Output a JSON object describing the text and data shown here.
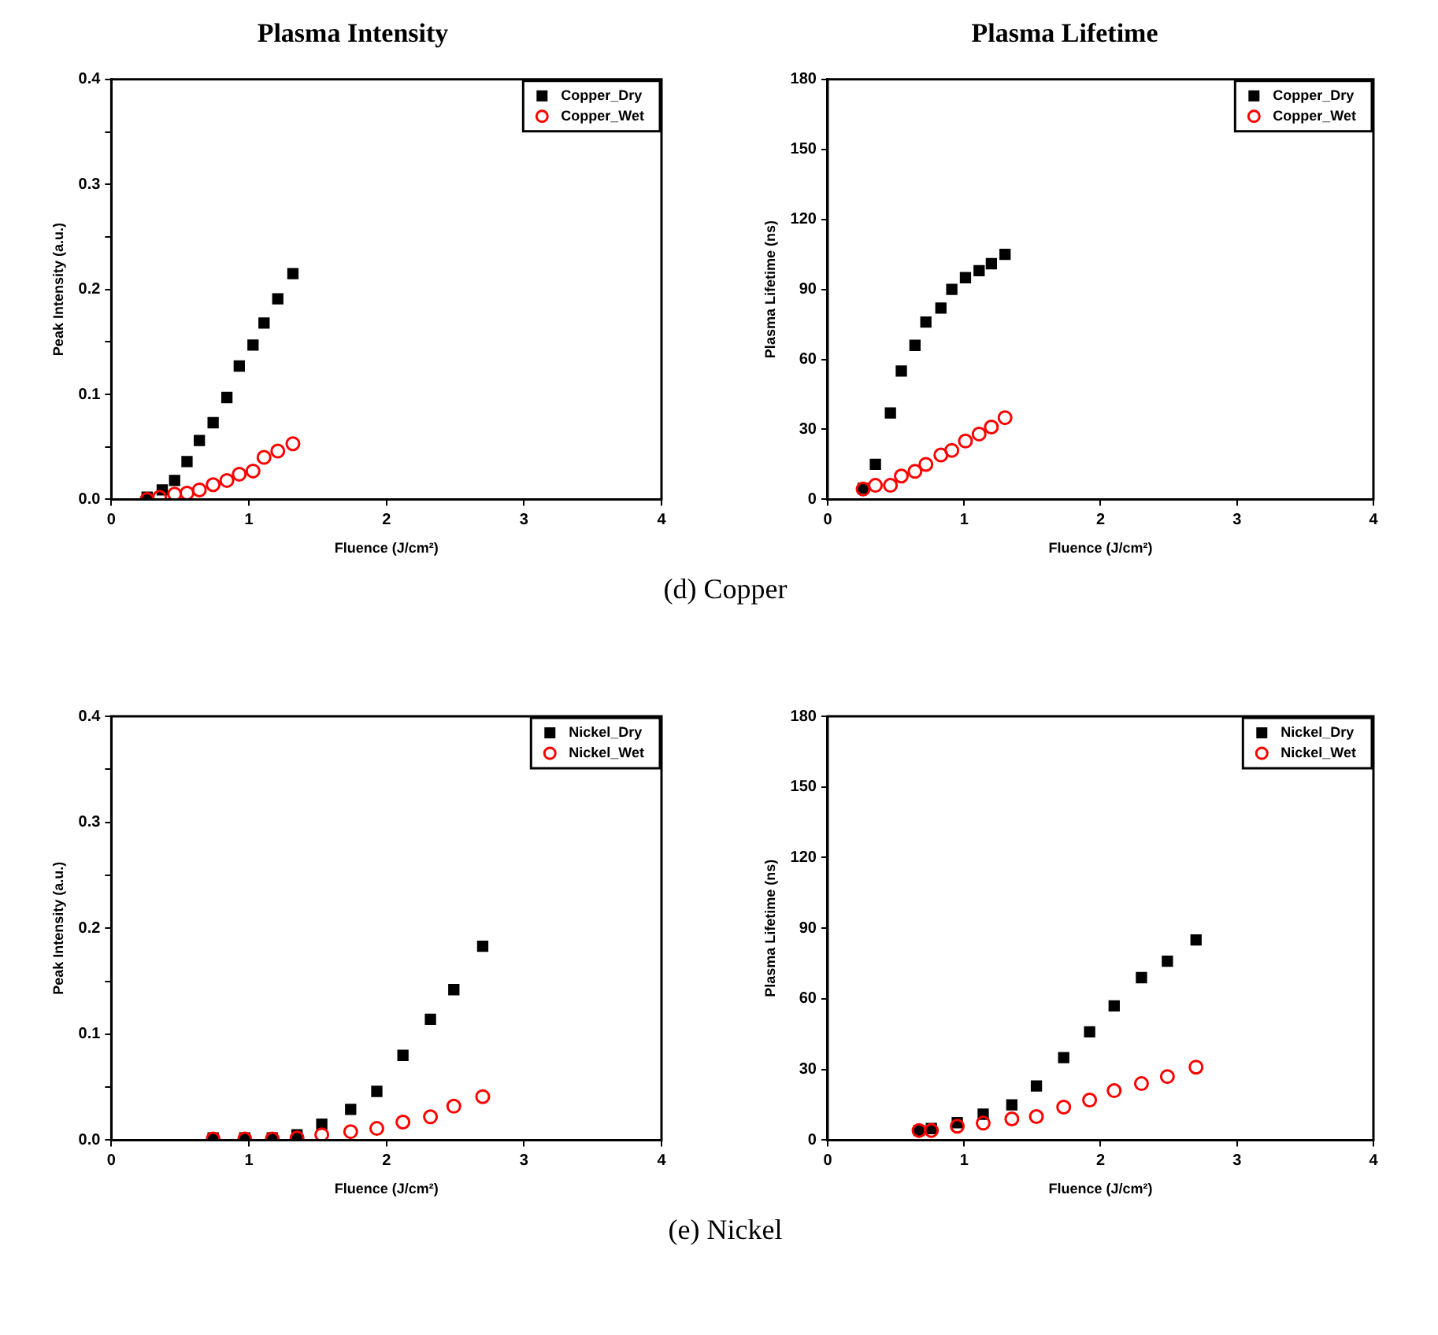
{
  "chart_data": [
    {
      "type": "scatter",
      "title": "Plasma Intensity",
      "xlabel": "Fluence (J/cm²)",
      "ylabel": "Peak Intensity (a.u.)",
      "annotations": [
        "(d) Copper"
      ],
      "xlim": [
        0,
        4
      ],
      "xticks": [
        0,
        1,
        2,
        3,
        4
      ],
      "ylim": [
        0,
        0.4
      ],
      "yticks": [
        {
          "value": 0,
          "label": "0.0"
        },
        {
          "value": 0.05,
          "label": null
        },
        0.1,
        {
          "value": 0.15,
          "label": null
        },
        0.2,
        {
          "value": 0.25,
          "label": null
        },
        0.3,
        {
          "value": 0.35,
          "label": null
        },
        0.4
      ],
      "grid": false,
      "legend": "top right",
      "series": [
        {
          "name": "Copper_Dry",
          "color": "#000000",
          "marker": "square",
          "x": [
            0.26,
            0.37,
            0.46,
            0.55,
            0.64,
            0.74,
            0.84,
            0.93,
            1.03,
            1.11,
            1.21,
            1.32
          ],
          "values": [
            0.002,
            0.009,
            0.018,
            0.036,
            0.056,
            0.073,
            0.097,
            0.127,
            0.147,
            0.168,
            0.191,
            0.215
          ]
        },
        {
          "name": "Copper_Wet",
          "color": "#ff0000",
          "marker": "circle",
          "x": [
            0.26,
            0.35,
            0.46,
            0.55,
            0.64,
            0.74,
            0.84,
            0.93,
            1.03,
            1.11,
            1.21,
            1.32
          ],
          "values": [
            0.0,
            0.002,
            0.005,
            0.006,
            0.009,
            0.014,
            0.018,
            0.024,
            0.027,
            0.04,
            0.046,
            0.053
          ]
        }
      ]
    },
    {
      "type": "scatter",
      "title": "Plasma Lifetime",
      "xlabel": "Fluence (J/cm²)",
      "ylabel": "Plasma Lifetime (ns)",
      "xlim": [
        0,
        4
      ],
      "xticks": [
        0,
        1,
        2,
        3,
        4
      ],
      "ylim": [
        0,
        180
      ],
      "yticks": [
        0,
        30,
        60,
        90,
        120,
        150,
        180
      ],
      "grid": false,
      "legend": "top right",
      "series": [
        {
          "name": "Copper_Dry",
          "color": "#000000",
          "marker": "square",
          "x": [
            0.26,
            0.35,
            0.46,
            0.54,
            0.64,
            0.72,
            0.83,
            0.91,
            1.01,
            1.11,
            1.2,
            1.3
          ],
          "values": [
            4.7,
            15,
            37,
            55,
            66,
            76,
            82,
            90,
            95,
            98,
            101,
            105
          ]
        },
        {
          "name": "Copper_Wet",
          "color": "#ff0000",
          "marker": "circle",
          "x": [
            0.26,
            0.35,
            0.46,
            0.54,
            0.64,
            0.72,
            0.83,
            0.91,
            1.01,
            1.11,
            1.2,
            1.3
          ],
          "values": [
            4.4,
            6,
            6,
            10,
            12,
            15,
            19,
            21,
            25,
            28,
            31,
            35
          ]
        }
      ]
    },
    {
      "type": "scatter",
      "xlabel": "Fluence (J/cm²)",
      "ylabel": "Peak Intensity (a.u.)",
      "annotations": [
        "(e) Nickel"
      ],
      "xlim": [
        0,
        4
      ],
      "xticks": [
        0,
        1,
        2,
        3,
        4
      ],
      "ylim": [
        0,
        0.4
      ],
      "yticks": [
        {
          "value": 0,
          "label": "0.0"
        },
        {
          "value": 0.05,
          "label": null
        },
        0.1,
        {
          "value": 0.15,
          "label": null
        },
        0.2,
        {
          "value": 0.25,
          "label": null
        },
        0.3,
        {
          "value": 0.35,
          "label": null
        },
        0.4
      ],
      "grid": false,
      "legend": "top right",
      "series": [
        {
          "name": "Nickel_Dry",
          "color": "#000000",
          "marker": "square",
          "x": [
            0.74,
            0.97,
            1.17,
            1.35,
            1.53,
            1.74,
            1.93,
            2.12,
            2.32,
            2.49,
            2.7
          ],
          "values": [
            0.002,
            0.002,
            0.002,
            0.005,
            0.015,
            0.029,
            0.046,
            0.08,
            0.114,
            0.142,
            0.183
          ]
        },
        {
          "name": "Nickel_Wet",
          "color": "#ff0000",
          "marker": "circle",
          "x": [
            0.74,
            0.97,
            1.17,
            1.35,
            1.53,
            1.74,
            1.93,
            2.12,
            2.32,
            2.49,
            2.7
          ],
          "values": [
            0.001,
            0.001,
            0.001,
            0.002,
            0.005,
            0.008,
            0.011,
            0.017,
            0.022,
            0.032,
            0.041
          ]
        }
      ]
    },
    {
      "type": "scatter",
      "xlabel": "Fluence (J/cm²)",
      "ylabel": "Plasma Lifetime (ns)",
      "xlim": [
        0,
        4
      ],
      "xticks": [
        0,
        1,
        2,
        3,
        4
      ],
      "ylim": [
        0,
        180
      ],
      "yticks": [
        0,
        30,
        60,
        90,
        120,
        150,
        180
      ],
      "grid": false,
      "legend": "top right",
      "series": [
        {
          "name": "Nickel_Dry",
          "color": "#000000",
          "marker": "square",
          "x": [
            0.67,
            0.76,
            0.95,
            1.14,
            1.35,
            1.53,
            1.73,
            1.92,
            2.1,
            2.3,
            2.49,
            2.7
          ],
          "values": [
            4.1,
            4.9,
            7.4,
            11,
            15,
            23,
            35,
            46,
            57,
            69,
            76,
            85
          ]
        },
        {
          "name": "Nickel_Wet",
          "color": "#ff0000",
          "marker": "circle",
          "x": [
            0.67,
            0.76,
            0.95,
            1.14,
            1.35,
            1.53,
            1.73,
            1.92,
            2.1,
            2.3,
            2.49,
            2.7
          ],
          "values": [
            4.1,
            4.1,
            5.9,
            7.2,
            9,
            10,
            14,
            17,
            21,
            24,
            27,
            31
          ]
        }
      ]
    }
  ]
}
